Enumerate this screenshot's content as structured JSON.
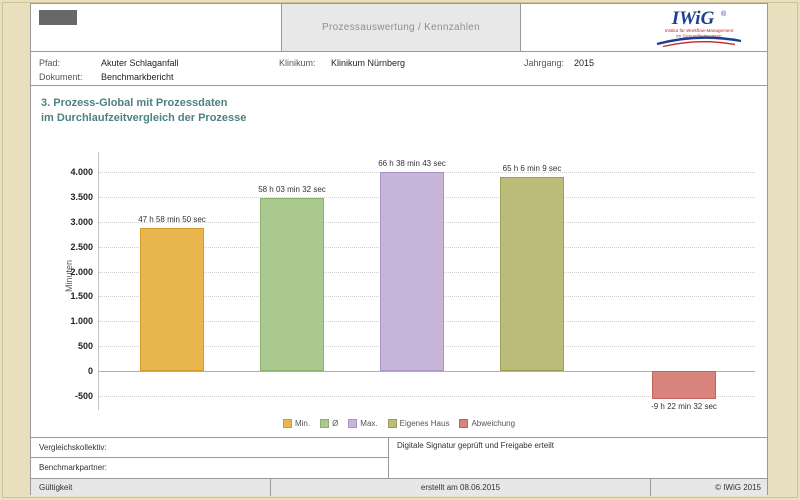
{
  "header": {
    "center_title": "Prozessauswertung / Kennzahlen",
    "logo": {
      "text": "IWiG",
      "registered": "®",
      "subtitle_line1": "Institut für Workflow-Management",
      "subtitle_line2": "im Gesundheitswesen",
      "brand_blue": "#1d3e94",
      "brand_red": "#c0272d"
    },
    "fields": [
      {
        "label": "Pfad:",
        "value": "Akuter Schlaganfall"
      },
      {
        "label": "Klinikum:",
        "value": "Klinikum Nürnberg"
      },
      {
        "label": "Jahrgang:",
        "value": "2015"
      },
      {
        "label": "Dokument:",
        "value": "Benchmarkbericht"
      }
    ]
  },
  "chart_data": {
    "type": "bar",
    "title": "3. Prozess-Global mit Prozessdaten im Durchlaufzeitvergleich der Prozesse",
    "title_line1": "3. Prozess-Global mit Prozessdaten",
    "title_line2": "im Durchlaufzeitvergleich der Prozesse",
    "title_color": "#4E8181",
    "ylabel": "Minuten",
    "ylim": [
      -500,
      4000
    ],
    "ytick_step": 500,
    "grid": "horizontal dotted",
    "legend_position": "bottom center",
    "categories": [
      "Min.",
      "Ø",
      "Max.",
      "Eigenes Haus",
      "Abweichung"
    ],
    "values": [
      2878.8,
      3483.5,
      3998.7,
      3906.2,
      -562.5
    ],
    "bar_labels": [
      "47 h 58 min 50 sec",
      "58 h 03 min 32 sec",
      "66 h 38 min 43 sec",
      "65 h 6 min 9 sec",
      "-9 h 22 min 32 sec"
    ],
    "colors": [
      "#E9B54D",
      "#A9C98F",
      "#C7B5D9",
      "#BBBC79",
      "#D9837D"
    ],
    "border_colors": [
      "#D09B2C",
      "#8BB06F",
      "#AB93C4",
      "#9EA055",
      "#C2625B"
    ],
    "legend": [
      {
        "label": "Min.",
        "color": "#E9B54D",
        "border": "#D09B2C"
      },
      {
        "label": "Ø",
        "color": "#A9C98F",
        "border": "#8BB06F"
      },
      {
        "label": "Max.",
        "color": "#C7B5D9",
        "border": "#AB93C4"
      },
      {
        "label": "Eigenes Haus",
        "color": "#BBBC79",
        "border": "#9EA055"
      },
      {
        "label": "Abweichung",
        "color": "#D9837D",
        "border": "#C2625B"
      }
    ]
  },
  "footer": {
    "left_row1": "Vergleichskollektiv:",
    "left_row2": "Benchmarkpartner:",
    "right_note": "Digitale Signatur geprüft und Freigabe erteilt",
    "bottom_left": "Gültigkeit",
    "bottom_center": "erstellt am 08.06.2015",
    "bottom_right": "© IWiG 2015"
  }
}
